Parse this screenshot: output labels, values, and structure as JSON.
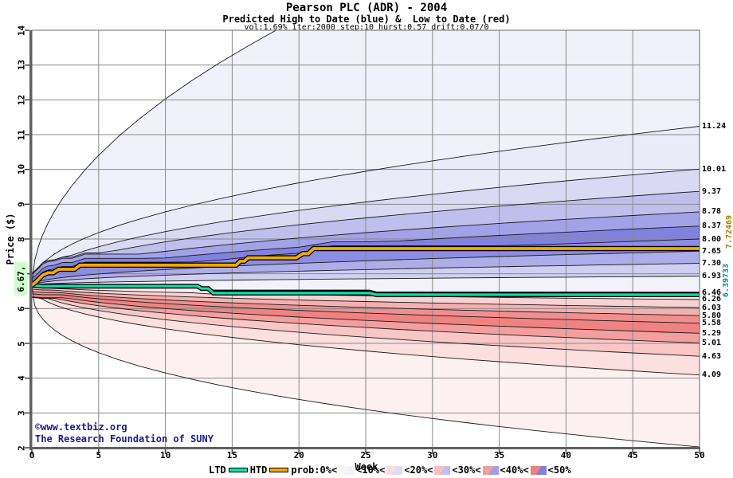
{
  "title": "Pearson PLC (ADR) - 2004",
  "subtitle": "Predicted High to Date (blue) &  Low to Date (red)",
  "params_line": "vol:1.69% iter:2000 step:10 hurst:0.57 drift:0.07/0",
  "watermark": {
    "line1": "©www.textbiz.org",
    "line2": "The Research Foundation of SUNY",
    "color": "#1a1a8e"
  },
  "legend": {
    "ltd_label": "LTD",
    "htd_label": "HTD",
    "prob_labels": [
      "prob:0%<",
      "<10%<",
      "<20%<",
      "<30%<",
      "<40%<",
      "<50%"
    ],
    "swatches": [
      [
        "#fdf3f3",
        "#f2f2fb"
      ],
      [
        "#fbdddd",
        "#dcdcf5"
      ],
      [
        "#f8c0c0",
        "#bfbfee"
      ],
      [
        "#f49f9f",
        "#a0a0e7"
      ],
      [
        "#f08181",
        "#8181e0"
      ]
    ]
  },
  "chart_data": {
    "type": "area",
    "description": "Monte-Carlo fan chart of predicted high-to-date (blue bands) and low-to-date (red bands) prices",
    "xlabel": "Week",
    "ylabel": "Price ($)",
    "x_range": [
      0,
      50
    ],
    "y_range": [
      2,
      14
    ],
    "x_ticks": [
      "0",
      "5",
      "10",
      "15",
      "20",
      "25",
      "30",
      "35",
      "40",
      "45",
      "50"
    ],
    "y_ticks": [
      "14",
      "13",
      "12",
      "11",
      "10",
      "9",
      "8",
      "6",
      "5",
      "4",
      "3",
      "2"
    ],
    "start_label": "6.67,",
    "start": {
      "week": 0,
      "price": 6.67
    },
    "grid_color": "#8a8a8a",
    "axis_color": "#606060",
    "contour_color": "#1a1a1a",
    "htd": {
      "name": "HTD",
      "end": 7.72469,
      "end_label": "7.72469",
      "color": "#f2a900",
      "label_color": "#a87a00",
      "points": [
        [
          0,
          6.67
        ],
        [
          0.3,
          6.76
        ],
        [
          0.8,
          6.96
        ],
        [
          1.2,
          7.03
        ],
        [
          1.6,
          7.03
        ],
        [
          2.0,
          7.13
        ],
        [
          3.2,
          7.13
        ],
        [
          3.6,
          7.25
        ],
        [
          15.3,
          7.25
        ],
        [
          15.6,
          7.36
        ],
        [
          15.9,
          7.36
        ],
        [
          16.2,
          7.46
        ],
        [
          19.8,
          7.46
        ],
        [
          20.3,
          7.58
        ],
        [
          20.7,
          7.58
        ],
        [
          21.1,
          7.725
        ],
        [
          50,
          7.725
        ]
      ]
    },
    "ltd": {
      "name": "LTD",
      "end": 6.39733,
      "end_label": "6.39733",
      "color": "#0fe0ac",
      "label_color": "#00997a",
      "points": [
        [
          0,
          6.67
        ],
        [
          0.8,
          6.645
        ],
        [
          12.4,
          6.645
        ],
        [
          12.7,
          6.575
        ],
        [
          13.2,
          6.575
        ],
        [
          13.6,
          6.445
        ],
        [
          25.3,
          6.445
        ],
        [
          25.8,
          6.4
        ],
        [
          50,
          6.397
        ]
      ]
    },
    "ltd_upper_contour": {
      "end": 6.46,
      "points": [
        [
          0,
          6.67
        ],
        [
          0.8,
          6.66
        ],
        [
          12.4,
          6.66
        ],
        [
          12.7,
          6.6
        ],
        [
          13.2,
          6.6
        ],
        [
          13.6,
          6.52
        ],
        [
          25.3,
          6.52
        ],
        [
          25.8,
          6.465
        ],
        [
          50,
          6.46
        ]
      ]
    },
    "high_contour_ends": [
      11.24,
      10.01,
      9.37,
      8.78,
      8.37,
      8.0,
      7.65,
      7.3,
      6.93
    ],
    "low_contour_ends": [
      6.26,
      6.03,
      5.8,
      5.58,
      5.29,
      5.01,
      4.63,
      4.09
    ],
    "envelope": {
      "high_value": 14.35,
      "high_at_week": 20,
      "high_exp": 0.52,
      "low_end": 2.02,
      "low_exp": 0.38
    },
    "fan": {
      "high_exp": 0.48,
      "low_exp": 0.45
    },
    "right_labels": [
      "11.24",
      "10.01",
      "9.37",
      "8.78",
      "8.37",
      "8.00",
      "7.65",
      "7.30",
      "6.93",
      "6.46",
      "6.26",
      "6.03",
      "5.80",
      "5.58",
      "5.29",
      "5.01",
      "4.63",
      "4.09"
    ],
    "high_band_colors": [
      "#f1f1fb",
      "#eaeaf9",
      "#d9d9f4",
      "#bfbfee",
      "#a2a2e8",
      "#8181e0",
      "#8d8de3",
      "#adade9",
      "#cfcff1",
      "#f2f2fa"
    ],
    "low_band_colors": [
      "#fdecec",
      "#fbd2d2",
      "#f7b0b0",
      "#f28e8e",
      "#f08282",
      "#f49e9e",
      "#f9c6c6",
      "#fcdfdf",
      "#fdf0f0"
    ]
  }
}
